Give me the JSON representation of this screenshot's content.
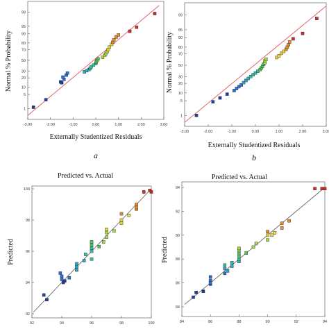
{
  "chart_data": [
    {
      "type": "scatter",
      "panel_label": "a",
      "title": "",
      "xlabel": "Externally Studentized Residuals",
      "ylabel": "Normal % Probability",
      "xlim": [
        -3,
        3
      ],
      "xticks": [
        "-3.00",
        "-2.00",
        "-1.00",
        "0.00",
        "1.00",
        "2.00",
        "3.00"
      ],
      "yticks": [
        "1",
        "5",
        "10",
        "20",
        "30",
        "50",
        "70",
        "80",
        "90",
        "95",
        "99"
      ],
      "y_scale": "normal-probability",
      "fit_line": {
        "from": [
          -3,
          0.4
        ],
        "to": [
          2.8,
          99.6
        ],
        "color": "#e06666"
      },
      "colors": [
        "#1f3f9f",
        "#2b6cd6",
        "#2aa6c8",
        "#30c0a0",
        "#4fc24f",
        "#a6d63c",
        "#e8d23a",
        "#e88a2a",
        "#cc2b2b"
      ],
      "points": [
        {
          "x": -2.75,
          "y": 1.2
        },
        {
          "x": -2.2,
          "y": 2.9
        },
        {
          "x": -1.5,
          "y": 14
        },
        {
          "x": -1.55,
          "y": 15
        },
        {
          "x": -1.4,
          "y": 18
        },
        {
          "x": -1.45,
          "y": 21
        },
        {
          "x": -1.3,
          "y": 24
        },
        {
          "x": -1.25,
          "y": 27
        },
        {
          "x": -0.5,
          "y": 29
        },
        {
          "x": -0.4,
          "y": 31
        },
        {
          "x": -0.3,
          "y": 33
        },
        {
          "x": -0.25,
          "y": 35
        },
        {
          "x": -0.2,
          "y": 38
        },
        {
          "x": -0.1,
          "y": 41
        },
        {
          "x": 0.0,
          "y": 44
        },
        {
          "x": 0.02,
          "y": 47
        },
        {
          "x": 0.05,
          "y": 50
        },
        {
          "x": 0.1,
          "y": 53
        },
        {
          "x": 0.3,
          "y": 56
        },
        {
          "x": 0.4,
          "y": 60
        },
        {
          "x": 0.45,
          "y": 63
        },
        {
          "x": 0.5,
          "y": 66
        },
        {
          "x": 0.55,
          "y": 70
        },
        {
          "x": 0.6,
          "y": 74
        },
        {
          "x": 0.7,
          "y": 78
        },
        {
          "x": 0.75,
          "y": 81
        },
        {
          "x": 0.8,
          "y": 84
        },
        {
          "x": 0.9,
          "y": 87
        },
        {
          "x": 1.0,
          "y": 89
        },
        {
          "x": 1.5,
          "y": 92
        },
        {
          "x": 1.8,
          "y": 94.5
        },
        {
          "x": 2.6,
          "y": 98.8
        }
      ]
    },
    {
      "type": "scatter",
      "panel_label": "b",
      "title": "",
      "xlabel": "Externally Studentized Residuals",
      "ylabel": "Normal % Probability",
      "xlim": [
        -3,
        3
      ],
      "xticks": [
        "-3.00",
        "-2.00",
        "-1.00",
        "0.00",
        "1.00",
        "2.00",
        "3.00"
      ],
      "yticks": [
        "1",
        "5",
        "10",
        "20",
        "30",
        "50",
        "70",
        "80",
        "90",
        "95",
        "99"
      ],
      "y_scale": "normal-probability",
      "fit_line": {
        "from": [
          -3,
          0.4
        ],
        "to": [
          3,
          99.7
        ],
        "color": "#e06666"
      },
      "colors": [
        "#1f3f9f",
        "#2b6cd6",
        "#2aa6c8",
        "#30c0a0",
        "#4fc24f",
        "#a6d63c",
        "#e8d23a",
        "#e88a2a",
        "#cc2b2b"
      ],
      "points": [
        {
          "x": -2.5,
          "y": 1.0
        },
        {
          "x": -1.8,
          "y": 4.5
        },
        {
          "x": -1.5,
          "y": 6.5
        },
        {
          "x": -1.2,
          "y": 9
        },
        {
          "x": -0.9,
          "y": 12
        },
        {
          "x": -0.8,
          "y": 14
        },
        {
          "x": -0.7,
          "y": 16
        },
        {
          "x": -0.6,
          "y": 18
        },
        {
          "x": -0.5,
          "y": 21
        },
        {
          "x": -0.4,
          "y": 24
        },
        {
          "x": -0.3,
          "y": 27
        },
        {
          "x": -0.2,
          "y": 30
        },
        {
          "x": -0.1,
          "y": 33
        },
        {
          "x": 0.0,
          "y": 36
        },
        {
          "x": 0.1,
          "y": 39
        },
        {
          "x": 0.2,
          "y": 42
        },
        {
          "x": 0.25,
          "y": 45
        },
        {
          "x": 0.3,
          "y": 48
        },
        {
          "x": 0.35,
          "y": 52
        },
        {
          "x": 0.4,
          "y": 55
        },
        {
          "x": 0.4,
          "y": 58
        },
        {
          "x": 0.45,
          "y": 61
        },
        {
          "x": 0.9,
          "y": 64
        },
        {
          "x": 1.0,
          "y": 67
        },
        {
          "x": 1.1,
          "y": 71
        },
        {
          "x": 1.2,
          "y": 74
        },
        {
          "x": 1.3,
          "y": 77
        },
        {
          "x": 1.35,
          "y": 80
        },
        {
          "x": 1.4,
          "y": 83
        },
        {
          "x": 1.45,
          "y": 86
        },
        {
          "x": 1.6,
          "y": 89
        },
        {
          "x": 2.0,
          "y": 93
        },
        {
          "x": 2.6,
          "y": 98.5
        }
      ]
    },
    {
      "type": "scatter",
      "panel_label": "",
      "title": "Predicted vs. Actual",
      "xlabel": "",
      "ylabel": "Predicted",
      "xlim": [
        92,
        100
      ],
      "ylim": [
        92,
        100
      ],
      "xticks": [
        "92",
        "94",
        "96",
        "98",
        "100"
      ],
      "yticks": [
        "92",
        "94",
        "96",
        "98",
        "100"
      ],
      "fit_line": {
        "from": [
          92.1,
          92.1
        ],
        "to": [
          100,
          100
        ],
        "color": "#666666"
      },
      "colors": [
        "#1f3f9f",
        "#2b6cd6",
        "#2aa6c8",
        "#30c0a0",
        "#4fc24f",
        "#a6d63c",
        "#e8d23a",
        "#e88a2a",
        "#cc2b2b"
      ],
      "points": [
        {
          "x": 92.8,
          "y": 93.2
        },
        {
          "x": 93.0,
          "y": 92.9
        },
        {
          "x": 93.9,
          "y": 94.6
        },
        {
          "x": 94.0,
          "y": 94.2
        },
        {
          "x": 94.1,
          "y": 94.0
        },
        {
          "x": 94.0,
          "y": 94.4
        },
        {
          "x": 94.2,
          "y": 94.1
        },
        {
          "x": 94.5,
          "y": 94.3
        },
        {
          "x": 95.0,
          "y": 95.0
        },
        {
          "x": 95.0,
          "y": 94.8
        },
        {
          "x": 95.0,
          "y": 95.2
        },
        {
          "x": 95.5,
          "y": 95.4
        },
        {
          "x": 95.6,
          "y": 95.8
        },
        {
          "x": 96.0,
          "y": 95.5
        },
        {
          "x": 96.0,
          "y": 96.0
        },
        {
          "x": 96.0,
          "y": 96.2
        },
        {
          "x": 96.0,
          "y": 96.4
        },
        {
          "x": 96.0,
          "y": 96.6
        },
        {
          "x": 96.5,
          "y": 96.3
        },
        {
          "x": 96.8,
          "y": 96.6
        },
        {
          "x": 97.0,
          "y": 96.9
        },
        {
          "x": 97.0,
          "y": 97.2
        },
        {
          "x": 97.0,
          "y": 97.4
        },
        {
          "x": 97.5,
          "y": 97.3
        },
        {
          "x": 98.0,
          "y": 97.8
        },
        {
          "x": 98.0,
          "y": 98.0
        },
        {
          "x": 98.0,
          "y": 98.4
        },
        {
          "x": 98.5,
          "y": 98.3
        },
        {
          "x": 99.0,
          "y": 98.7
        },
        {
          "x": 99.0,
          "y": 99.0
        },
        {
          "x": 99.0,
          "y": 98.8
        },
        {
          "x": 99.5,
          "y": 99.8
        },
        {
          "x": 100.0,
          "y": 99.8
        },
        {
          "x": 99.9,
          "y": 99.9
        }
      ]
    },
    {
      "type": "scatter",
      "panel_label": "",
      "title": "Predicted vs. Actual",
      "xlabel": "",
      "ylabel": "Predicted",
      "xlim": [
        84,
        94
      ],
      "ylim": [
        84,
        94
      ],
      "xticks": [
        "84",
        "86",
        "88",
        "90",
        "92",
        "94"
      ],
      "yticks": [
        "84",
        "86",
        "88",
        "90",
        "92",
        "94"
      ],
      "fit_line": {
        "from": [
          84.2,
          84.2
        ],
        "to": [
          94,
          94
        ],
        "color": "#666666"
      },
      "colors": [
        "#1f3f9f",
        "#2b6cd6",
        "#2aa6c8",
        "#30c0a0",
        "#4fc24f",
        "#a6d63c",
        "#e8d23a",
        "#e88a2a",
        "#cc2b2b"
      ],
      "points": [
        {
          "x": 84.8,
          "y": 84.8
        },
        {
          "x": 85.0,
          "y": 85.2
        },
        {
          "x": 85.5,
          "y": 85.3
        },
        {
          "x": 86.0,
          "y": 85.9
        },
        {
          "x": 86.0,
          "y": 86.2
        },
        {
          "x": 86.0,
          "y": 86.5
        },
        {
          "x": 86.0,
          "y": 86.0
        },
        {
          "x": 87.0,
          "y": 86.8
        },
        {
          "x": 87.0,
          "y": 87.2
        },
        {
          "x": 87.0,
          "y": 87.5
        },
        {
          "x": 87.2,
          "y": 87.0
        },
        {
          "x": 87.5,
          "y": 87.4
        },
        {
          "x": 87.5,
          "y": 87.7
        },
        {
          "x": 88.0,
          "y": 87.8
        },
        {
          "x": 88.0,
          "y": 88.0
        },
        {
          "x": 88.0,
          "y": 88.3
        },
        {
          "x": 88.0,
          "y": 88.6
        },
        {
          "x": 88.0,
          "y": 88.9
        },
        {
          "x": 88.5,
          "y": 88.5
        },
        {
          "x": 89.0,
          "y": 89.0
        },
        {
          "x": 89.2,
          "y": 89.3
        },
        {
          "x": 90.0,
          "y": 89.6
        },
        {
          "x": 90.0,
          "y": 90.0
        },
        {
          "x": 90.0,
          "y": 90.3
        },
        {
          "x": 90.3,
          "y": 90.0
        },
        {
          "x": 90.5,
          "y": 90.2
        },
        {
          "x": 91.0,
          "y": 90.6
        },
        {
          "x": 91.0,
          "y": 91.0
        },
        {
          "x": 91.5,
          "y": 91.2
        },
        {
          "x": 93.3,
          "y": 93.9
        },
        {
          "x": 93.8,
          "y": 93.9
        },
        {
          "x": 94.0,
          "y": 93.9
        }
      ]
    }
  ]
}
